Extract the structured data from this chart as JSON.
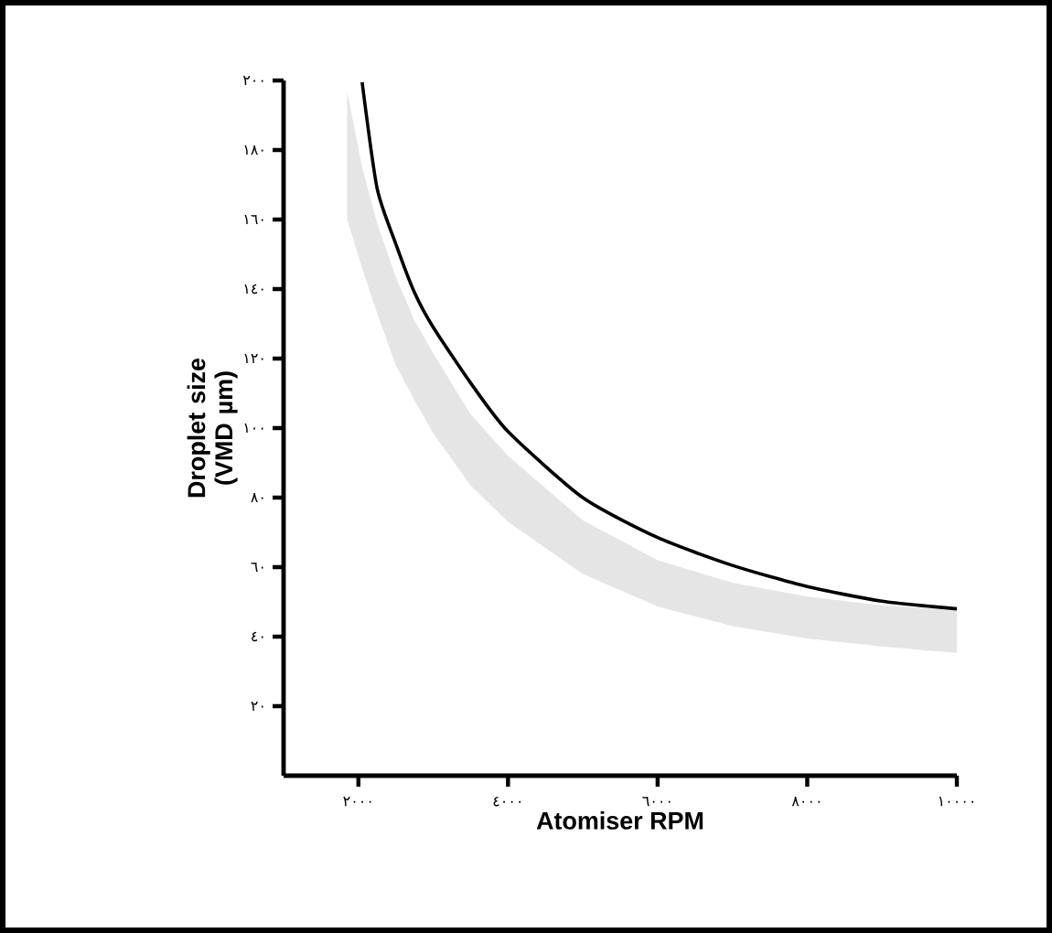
{
  "chart_data": {
    "type": "line",
    "xlabel": "Atomiser RPM",
    "ylabel": "Droplet size (VMD µm)",
    "x": [
      1850,
      2050,
      2250,
      2500,
      2750,
      3000,
      3500,
      4000,
      5000,
      6000,
      7000,
      8000,
      9000,
      10000
    ],
    "series": [
      {
        "color": "#000000",
        "values": [
          null,
          199.5,
          169,
          153,
          139,
          129,
          113,
          99,
          80,
          68.5,
          60.5,
          54.4,
          50.2,
          48
        ],
        "lower": [
          160,
          146,
          133,
          118,
          108,
          98.5,
          83.5,
          73,
          58,
          48.7,
          43,
          39.5,
          37.2,
          35.3
        ],
        "upper": [
          197,
          175,
          159,
          143.5,
          131,
          121.5,
          104,
          92,
          73.5,
          62,
          55.5,
          51.5,
          49,
          47.6
        ]
      }
    ],
    "xlim": [
      1000,
      10000
    ],
    "ylim": [
      0,
      200
    ],
    "xticks": [
      {
        "value": 2000,
        "label": "٢٠٠٠"
      },
      {
        "value": 4000,
        "label": "٤٠٠٠"
      },
      {
        "value": 6000,
        "label": "٦٠٠٠"
      },
      {
        "value": 8000,
        "label": "٨٠٠٠"
      },
      {
        "value": 10000,
        "label": "١٠٠٠٠"
      }
    ],
    "yticks": [
      {
        "value": 20,
        "label": "٢٠"
      },
      {
        "value": 40,
        "label": "٤٠"
      },
      {
        "value": 60,
        "label": "٦٠"
      },
      {
        "value": 80,
        "label": "٨٠"
      },
      {
        "value": 100,
        "label": "١٠٠"
      },
      {
        "value": 120,
        "label": "١٢٠"
      },
      {
        "value": 140,
        "label": "١٤٠"
      },
      {
        "value": 160,
        "label": "١٦٠"
      },
      {
        "value": 180,
        "label": "١٨٠"
      },
      {
        "value": 200,
        "label": "٢٠٠"
      }
    ]
  }
}
